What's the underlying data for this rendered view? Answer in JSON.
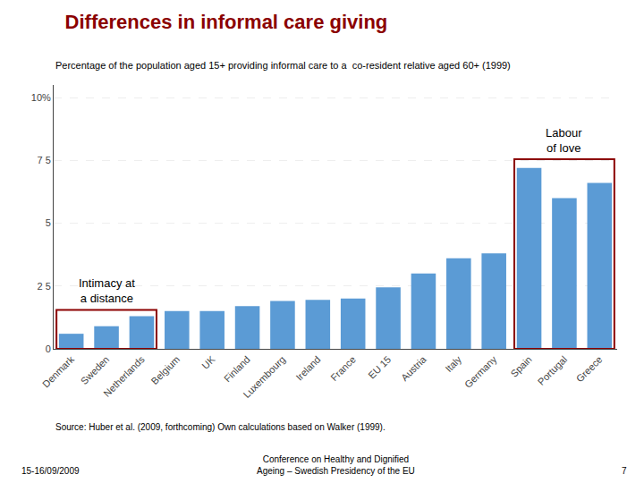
{
  "chart_data": {
    "type": "bar",
    "title": "Differences in informal care giving",
    "title_color": "#8B0000",
    "subtitle": "Percentage of the population aged 15+ providing informal care to a  co-resident relative aged 60+ (1999)",
    "categories": [
      "Denmark",
      "Sweden",
      "Netherlands",
      "Belgium",
      "UK",
      "Finland",
      "Luxembourg",
      "Ireland",
      "France",
      "EU 15",
      "Austria",
      "Italy",
      "Germany",
      "Spain",
      "Portugal",
      "Greece"
    ],
    "values": [
      0.6,
      0.9,
      1.3,
      1.5,
      1.5,
      1.7,
      1.9,
      1.95,
      2.0,
      2.45,
      3.0,
      3.6,
      3.8,
      7.2,
      6.0,
      6.6
    ],
    "color": "#5B9BD5",
    "ylim": [
      0,
      10.5
    ],
    "yticks": [
      0,
      {
        "value": 2.5,
        "label": "2 5"
      },
      5,
      {
        "value": 7.5,
        "label": "7 5"
      },
      {
        "value": 10,
        "label": "10%"
      }
    ],
    "grid": true,
    "boxes": [
      {
        "from": "Denmark",
        "to": "Netherlands",
        "height": 1.55,
        "color": "#8B0000",
        "label": "Intimacy at\na distance"
      },
      {
        "from": "Spain",
        "to": "Greece",
        "height": 7.55,
        "color": "#8B0000",
        "label": "Labour\nof love"
      }
    ],
    "source": "Source: Huber et al. (2009, forthcoming) Own calculations based on Walker (1999).",
    "footer_left": "15-16/09/2009",
    "footer_center": "Conference on Healthy and Dignified\nAgeing – Swedish Presidency of the EU",
    "footer_right": "7"
  }
}
